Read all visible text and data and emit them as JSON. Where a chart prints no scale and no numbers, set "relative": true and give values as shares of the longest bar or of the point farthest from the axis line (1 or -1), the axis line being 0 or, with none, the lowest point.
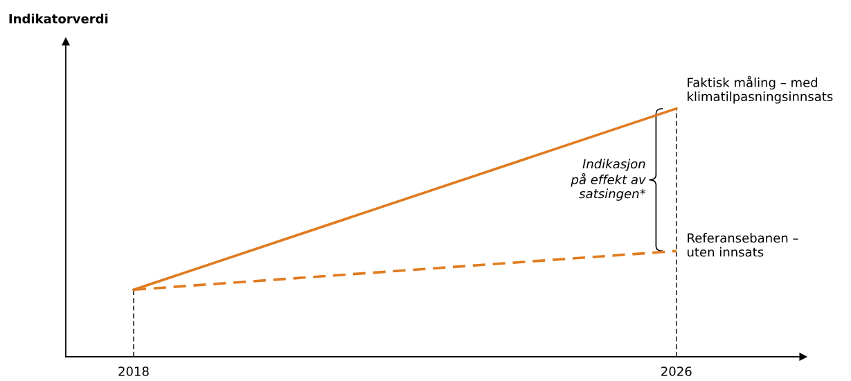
{
  "chart_data": {
    "type": "line",
    "relative": true,
    "x": [
      2018,
      2026
    ],
    "xlim": [
      2017,
      2027.87
    ],
    "xticks": [
      2018,
      2026
    ],
    "series": [
      {
        "name": "Faktisk måling – med\nklimatilpasningsinnsats",
        "color": "#e07b1f",
        "values": [
          0.27,
          1
        ],
        "line_style": "solid"
      },
      {
        "name": "Referansebanen –\nuten innsats",
        "color": "#e07b1f",
        "values": [
          0.27,
          0.426
        ],
        "line_style": "dashed"
      }
    ],
    "ref_lines": [
      {
        "axis": "x",
        "value": 2018,
        "color": "#000000",
        "line_style": "dashed"
      },
      {
        "axis": "x",
        "value": 2026,
        "color": "#000000",
        "line_style": "dashed"
      }
    ],
    "annotations": [
      "Indikasjon\npå effekt av\nsatsingen*",
      "Indikatorverdi"
    ],
    "grid": false,
    "legend": false,
    "marker": "none"
  }
}
